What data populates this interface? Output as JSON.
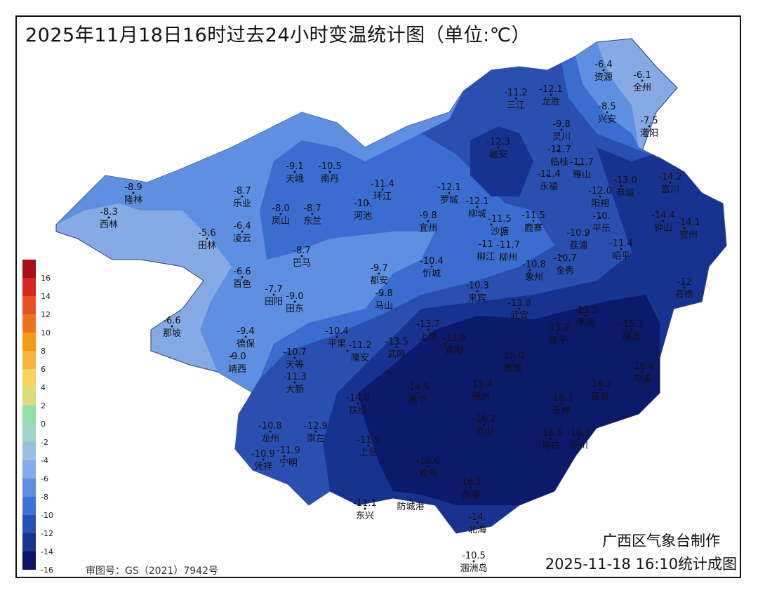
{
  "title": "2025年11月18日16时过去24小时变温统计图（单位:℃）",
  "credit": "广西区气象台制作",
  "timestamp": "2025-11-18 16:10统计成图",
  "review_number": "审图号：GS（2021）7942号",
  "legend": {
    "ticks": [
      "16",
      "14",
      "12",
      "10",
      "8",
      "6",
      "4",
      "2",
      "0",
      "-2",
      "-4",
      "-6",
      "-8",
      "-10",
      "-12",
      "-14",
      "-16"
    ],
    "colors": [
      "#a50f15",
      "#d7261e",
      "#e8502a",
      "#ef7220",
      "#f39a12",
      "#f5b43b",
      "#f6d45e",
      "#d9dd7a",
      "#8ee0a4",
      "#9fd3c8",
      "#9dbfdf",
      "#86aae6",
      "#5e8fe0",
      "#3b73d8",
      "#2450b4",
      "#16358f",
      "#0a1466"
    ]
  },
  "zone_colors": {
    "z6": "#86aae6",
    "z8": "#5e8fe0",
    "z10": "#3b6ccf",
    "z12": "#2a4fb0",
    "z14": "#17338f",
    "z16": "#0c1a6c"
  },
  "stations": [
    {
      "name": "资源",
      "value": "-6.4"
    },
    {
      "name": "全州",
      "value": "-6.1"
    },
    {
      "name": "龙胜",
      "value": "-12.1"
    },
    {
      "name": "三江",
      "value": "-11.2"
    },
    {
      "name": "兴安",
      "value": "-8.5"
    },
    {
      "name": "灌阳",
      "value": "-7.5"
    },
    {
      "name": "灵川",
      "value": "-9.8"
    },
    {
      "name": "临桂",
      "value": "-11.7"
    },
    {
      "name": "雁山",
      "value": "-11.7"
    },
    {
      "name": "融安",
      "value": "-12.3"
    },
    {
      "name": "永福",
      "value": "-11.4"
    },
    {
      "name": "阳朔",
      "value": "-12.0"
    },
    {
      "name": "恭城",
      "value": "-13.0"
    },
    {
      "name": "富川",
      "value": "-14.2"
    },
    {
      "name": "钟山",
      "value": "-14.4"
    },
    {
      "name": "贺州",
      "value": "-14.1"
    },
    {
      "name": "平乐",
      "value": "-10."
    },
    {
      "name": "荔浦",
      "value": "-10.9"
    },
    {
      "name": "昭平",
      "value": "-11.4"
    },
    {
      "name": "金秀",
      "value": "-10.7"
    },
    {
      "name": "天峨",
      "value": "-9.1"
    },
    {
      "name": "南丹",
      "value": "-10.5"
    },
    {
      "name": "环江",
      "value": "-11.4"
    },
    {
      "name": "河池",
      "value": "-10."
    },
    {
      "name": "罗城",
      "value": "-12.1"
    },
    {
      "name": "柳城",
      "value": "-12.1"
    },
    {
      "name": "沙塘",
      "value": "-11.5"
    },
    {
      "name": "柳州",
      "value": "-11.7"
    },
    {
      "name": "鹿寨",
      "value": "-11.5"
    },
    {
      "name": "柳江",
      "value": "-11"
    },
    {
      "name": "宜州",
      "value": "-9.8"
    },
    {
      "name": "隆林",
      "value": "-8.9"
    },
    {
      "name": "西林",
      "value": "-8.3"
    },
    {
      "name": "乐业",
      "value": "-8.7"
    },
    {
      "name": "凤山",
      "value": "-8.0"
    },
    {
      "name": "东兰",
      "value": "-8.7"
    },
    {
      "name": "田林",
      "value": "-5.6"
    },
    {
      "name": "凌云",
      "value": "-6.4"
    },
    {
      "name": "巴马",
      "value": "-8.7"
    },
    {
      "name": "忻城",
      "value": "-10.4"
    },
    {
      "name": "都安",
      "value": "-9.7"
    },
    {
      "name": "马山",
      "value": "-9.8"
    },
    {
      "name": "象州",
      "value": "-10.8"
    },
    {
      "name": "来宾",
      "value": "-10.3"
    },
    {
      "name": "百色",
      "value": "-6.6"
    },
    {
      "name": "田阳",
      "value": "-7.7"
    },
    {
      "name": "田东",
      "value": "-9.0"
    },
    {
      "name": "武宣",
      "value": "-13.8"
    },
    {
      "name": "平南",
      "value": "-13.3"
    },
    {
      "name": "桂平",
      "value": "-13.2"
    },
    {
      "name": "藤县",
      "value": "-15.2"
    },
    {
      "name": "那坡",
      "value": "-6.6"
    },
    {
      "name": "德保",
      "value": "-9.4"
    },
    {
      "name": "靖西",
      "value": "-9.0"
    },
    {
      "name": "平果",
      "value": "-10.4"
    },
    {
      "name": "隆安",
      "value": "-11.2"
    },
    {
      "name": "武鸣",
      "value": "-13.5"
    },
    {
      "name": "上林",
      "value": "-13.7"
    },
    {
      "name": "宾阳",
      "value": "-13.9"
    },
    {
      "name": "天等",
      "value": "-10.7"
    },
    {
      "name": "大新",
      "value": "-11.3"
    },
    {
      "name": "贵港",
      "value": "-15.0"
    },
    {
      "name": "岑溪",
      "value": "-16.4"
    },
    {
      "name": "邕宁",
      "value": "-14.9"
    },
    {
      "name": "横州",
      "value": "-15.4"
    },
    {
      "name": "扶绥",
      "value": "-14.0"
    },
    {
      "name": "玉林",
      "value": "-16.1"
    },
    {
      "name": "容县",
      "value": "-16.2"
    },
    {
      "name": "龙州",
      "value": "-10.8"
    },
    {
      "name": "崇左",
      "value": "-12.9"
    },
    {
      "name": "凭祥",
      "value": "-10.9"
    },
    {
      "name": "宁明",
      "value": "-11.9"
    },
    {
      "name": "灵山",
      "value": "-16.2"
    },
    {
      "name": "博白",
      "value": "-16.6"
    },
    {
      "name": "陆川",
      "value": "-16.3"
    },
    {
      "name": "上思",
      "value": "-11.5"
    },
    {
      "name": "钦州",
      "value": "-16.6"
    },
    {
      "name": "合浦",
      "value": "-16.1"
    },
    {
      "name": "东兴",
      "value": "-11.1"
    },
    {
      "name": "防城港",
      "value": ""
    },
    {
      "name": "北海",
      "value": "-14."
    },
    {
      "name": "涠洲岛",
      "value": "-10.5"
    },
    {
      "name": "苍梧",
      "value": "-12"
    }
  ]
}
